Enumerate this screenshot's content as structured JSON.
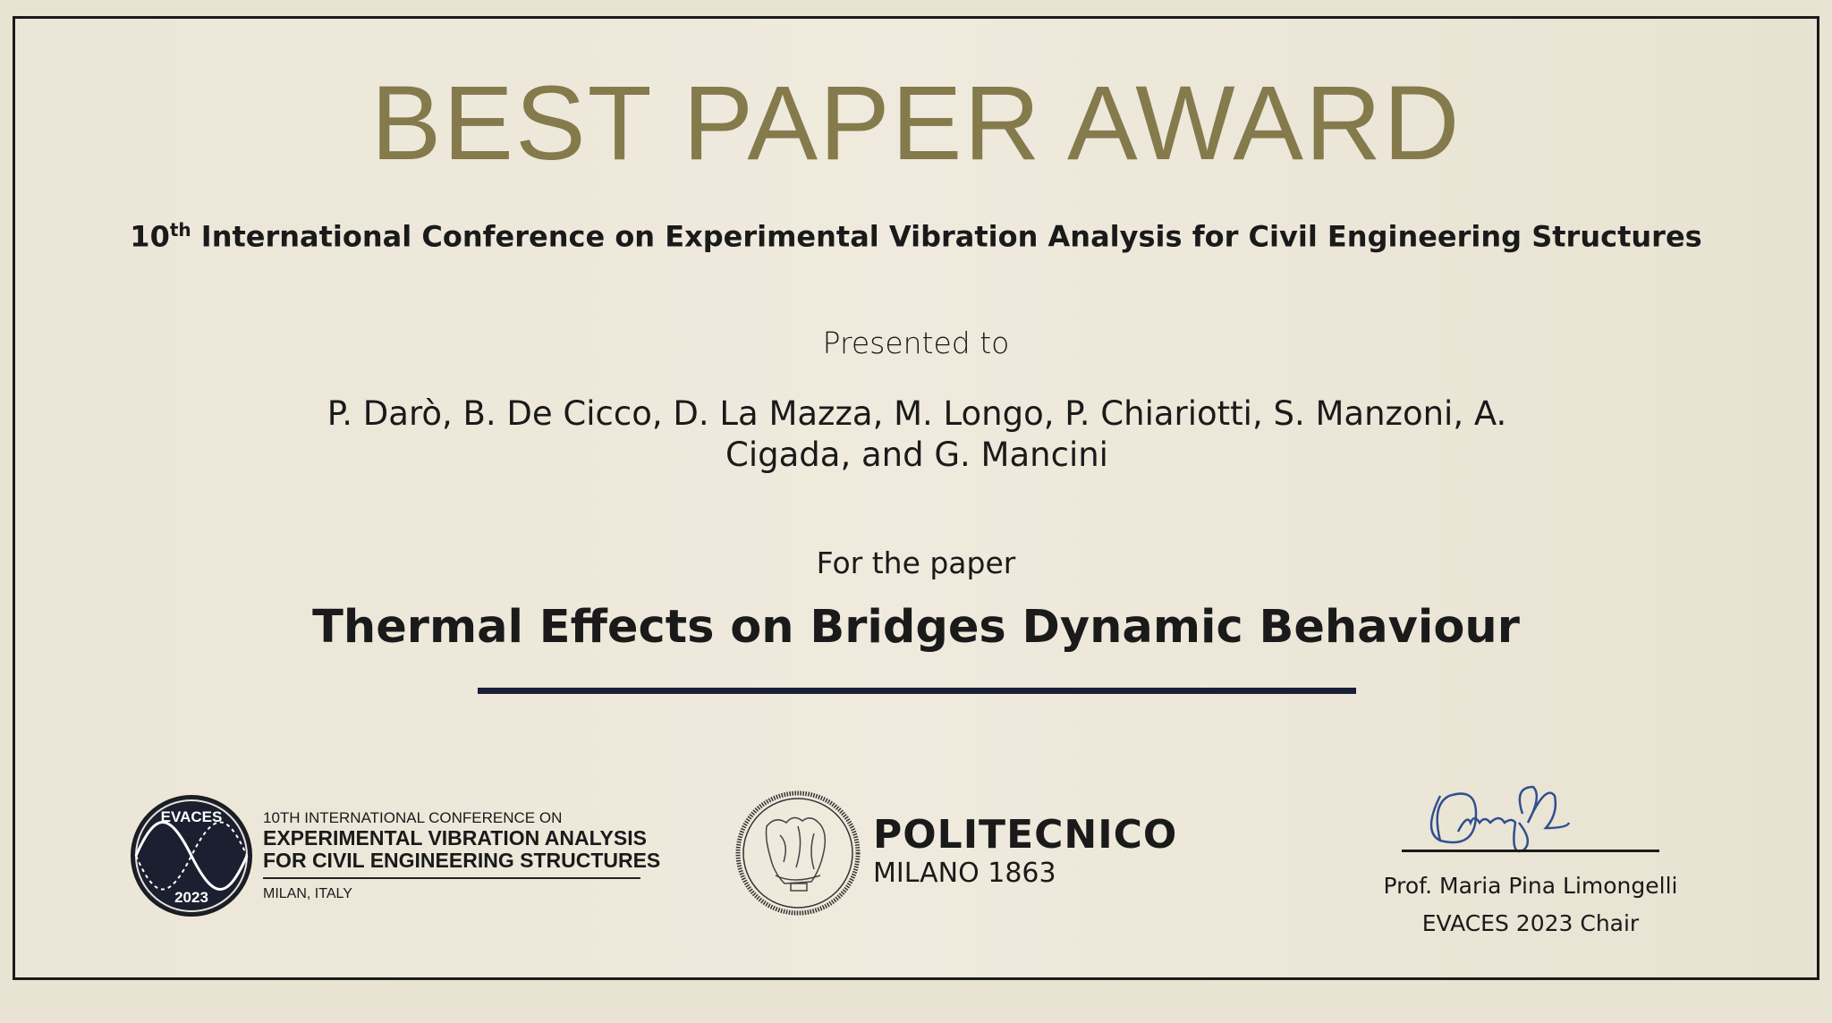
{
  "certificate": {
    "title": "BEST PAPER AWARD",
    "conference_ordinal": "10",
    "conference_ordinal_suffix": "th",
    "conference_name": "International Conference on Experimental Vibration Analysis for Civil Engineering Structures",
    "presented_to_label": "Presented to",
    "authors_line1": "P. Darò, B. De Cicco, D. La Mazza, M. Longo, P. Chiariotti, S. Manzoni, A.",
    "authors_line2": "Cigada, and G. Mancini",
    "for_paper_label": "For the paper",
    "paper_title": "Thermal Effects on Bridges Dynamic Behaviour"
  },
  "evaces_logo": {
    "badge_top": "EVACES",
    "badge_bottom": "2023",
    "line1": "10TH INTERNATIONAL CONFERENCE ON",
    "line2": "EXPERIMENTAL VIBRATION ANALYSIS",
    "line3": "FOR CIVIL ENGINEERING STRUCTURES",
    "location": "MILAN, ITALY"
  },
  "polimi_logo": {
    "name": "POLITECNICO",
    "sub": "MILANO 1863"
  },
  "signatory": {
    "name": "Prof. Maria Pina Limongelli",
    "role": "EVACES 2023 Chair",
    "signature_text": "Limongelli"
  },
  "colors": {
    "title_gold": "#857a4c",
    "rule_navy": "#1a1f36",
    "signature_blue": "#2f4f8f",
    "paper": "#ece6d6"
  }
}
